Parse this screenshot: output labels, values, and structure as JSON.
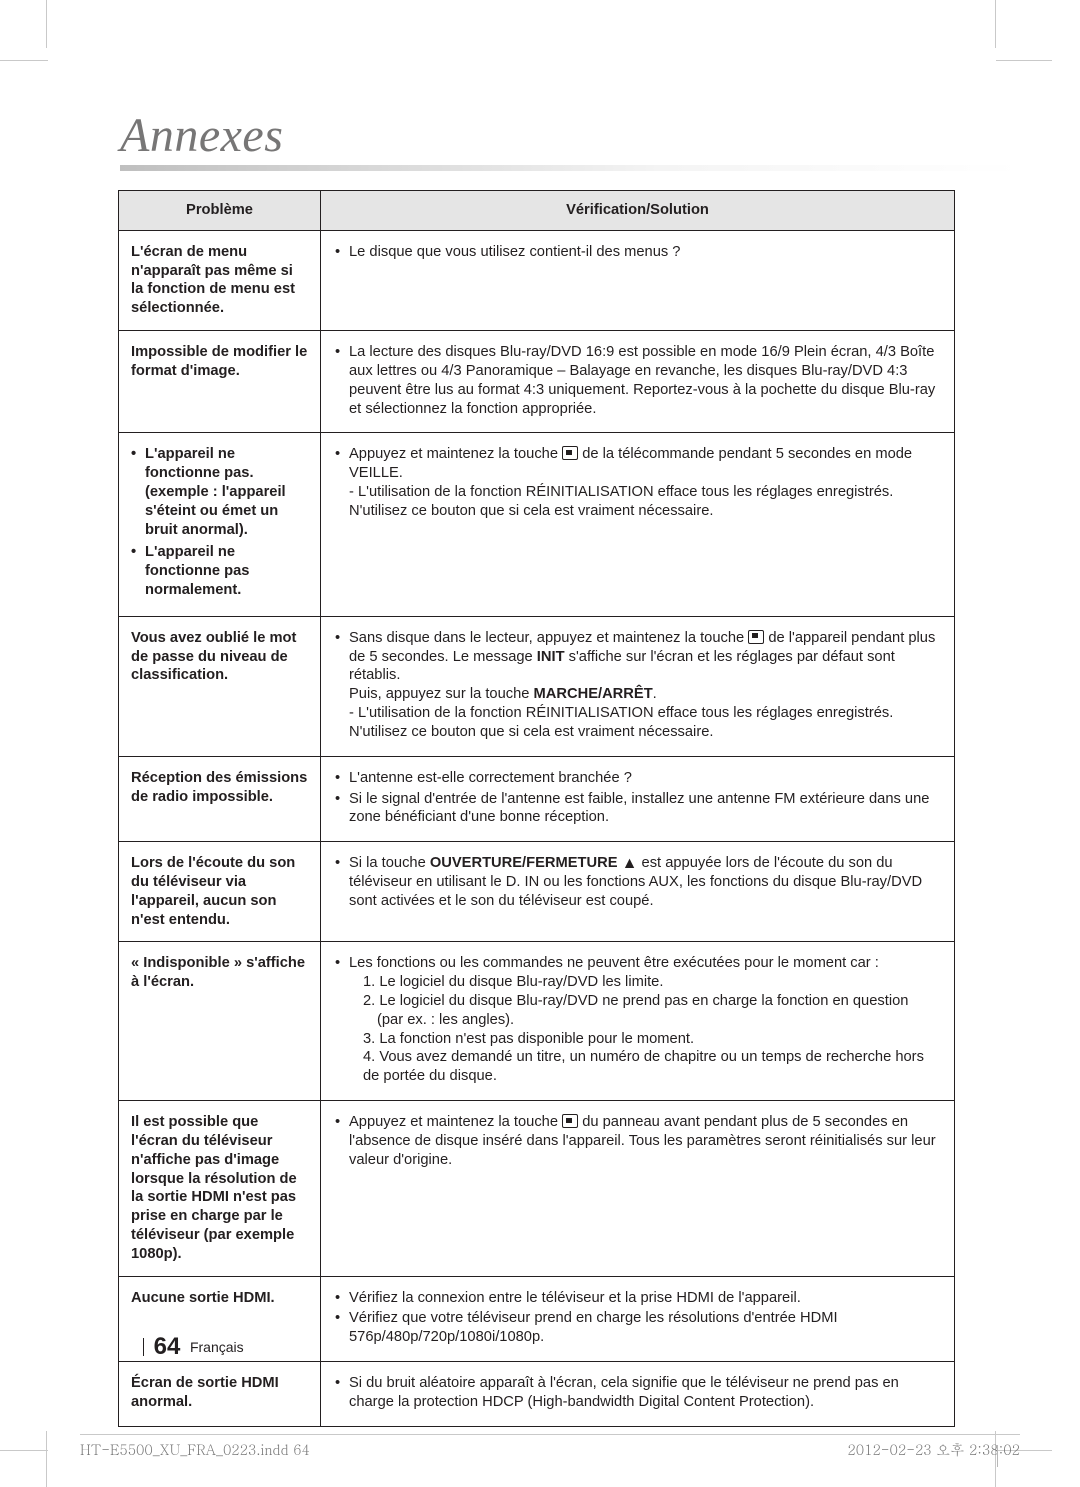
{
  "page": {
    "heading": "Annexes",
    "footer_page_num": "64",
    "footer_lang": "Français",
    "imprint_left": "HT-E5500_XU_FRA_0223.indd   64",
    "imprint_right": "2012-02-23   오후 2:38:02"
  },
  "table": {
    "header_problem": "Problème",
    "header_solution": "Vérification/Solution",
    "rows": [
      {
        "problem_html": "L'écran de menu n'apparaît pas même si la fonction de menu est sélectionnée.",
        "solution_items": [
          "Le disque que vous utilisez contient-il des menus ?"
        ]
      },
      {
        "problem_html": "Impossible de modifier le format d'image.",
        "solution_items": [
          "La lecture des disques Blu-ray/DVD 16:9 est possible en mode 16/9 Plein écran, 4/3 Boîte aux lettres ou 4/3 Panoramique – Balayage en revanche, les disques Blu-ray/DVD 4:3 peuvent être lus au format 4:3 uniquement. Reportez-vous à la pochette du disque Blu-ray et sélectionnez la fonction appropriée."
        ]
      },
      {
        "problem_items": [
          "L'appareil ne fonctionne pas.\n(exemple : l'appareil s'éteint ou émet un bruit anormal).",
          "L'appareil ne fonctionne pas normalement."
        ],
        "solution_items": [
          "Appuyez et maintenez la touche {STOP} de la télécommande pendant 5 secondes en mode VEILLE.\n- L'utilisation de la fonction RÉINITIALISATION efface tous les réglages enregistrés.  N'utilisez ce bouton que si cela est vraiment nécessaire."
        ]
      },
      {
        "problem_html": "Vous avez oublié le mot de passe du niveau de classification.",
        "solution_items": [
          "Sans disque dans le lecteur, appuyez et maintenez la touche {STOP} de l'appareil pendant plus de 5 secondes. Le message {B}INIT{/B} s'affiche sur l'écran et les réglages par défaut sont rétablis.\nPuis, appuyez sur la touche {B}MARCHE/ARRÊT{/B}.\n- L'utilisation de la fonction RÉINITIALISATION efface tous les réglages enregistrés.  N'utilisez ce bouton que si cela est vraiment nécessaire."
        ]
      },
      {
        "problem_html": "Réception des émissions de radio impossible.",
        "solution_items": [
          "L'antenne est-elle correctement branchée ?",
          "Si le signal d'entrée de l'antenne est faible, installez une antenne FM extérieure dans une zone bénéficiant d'une bonne réception."
        ]
      },
      {
        "problem_html": "Lors de l'écoute du son du téléviseur via l'appareil, aucun son n'est entendu.",
        "solution_items": [
          "Si la touche {B}OUVERTURE/FERMETURE{/B} {EJECT} est appuyée lors de l'écoute du son du téléviseur en utilisant le D. IN ou les fonctions AUX, les fonctions du disque Blu-ray/DVD sont activées et le son du téléviseur est coupé."
        ]
      },
      {
        "problem_html": "« Indisponible » s'affiche à l'écran.",
        "solution_items": [
          "Les fonctions ou les commandes ne peuvent être exécutées pour le moment car :\n{SUB}1. Le logiciel du disque Blu-ray/DVD les limite.{/SUB}\n{SUB}2. Le logiciel du disque Blu-ray/DVD ne prend pas en charge la fonction en question{/SUB}\n{SUB2}(par ex. : les angles).{/SUB2}\n{SUB}3. La fonction n'est pas disponible pour le moment.{/SUB}\n{SUB}4. Vous avez demandé un titre, un numéro de chapitre ou un temps de recherche hors de portée du disque.{/SUB}"
        ]
      },
      {
        "problem_html": "Il est possible que l'écran du téléviseur n'affiche pas d'image lorsque la résolution de la sortie HDMI n'est pas prise en charge par le téléviseur (par exemple 1080p).",
        "solution_items": [
          "Appuyez et maintenez la touche {STOP} du panneau avant pendant plus de 5 secondes en l'absence de disque inséré dans l'appareil. Tous les paramètres seront réinitialisés sur leur valeur d'origine."
        ]
      },
      {
        "problem_html": "Aucune sortie HDMI.",
        "solution_items": [
          "Vérifiez la connexion entre le téléviseur et la prise HDMI de l'appareil.",
          "Vérifiez que votre téléviseur prend en charge les résolutions d'entrée HDMI 576p/480p/720p/1080i/1080p."
        ]
      },
      {
        "problem_html": "Écran de sortie HDMI anormal.",
        "solution_items": [
          "Si du bruit aléatoire apparaît à l'écran, cela signifie que le téléviseur ne prend pas en charge la protection HDCP (High-bandwidth Digital Content Protection)."
        ]
      }
    ]
  }
}
